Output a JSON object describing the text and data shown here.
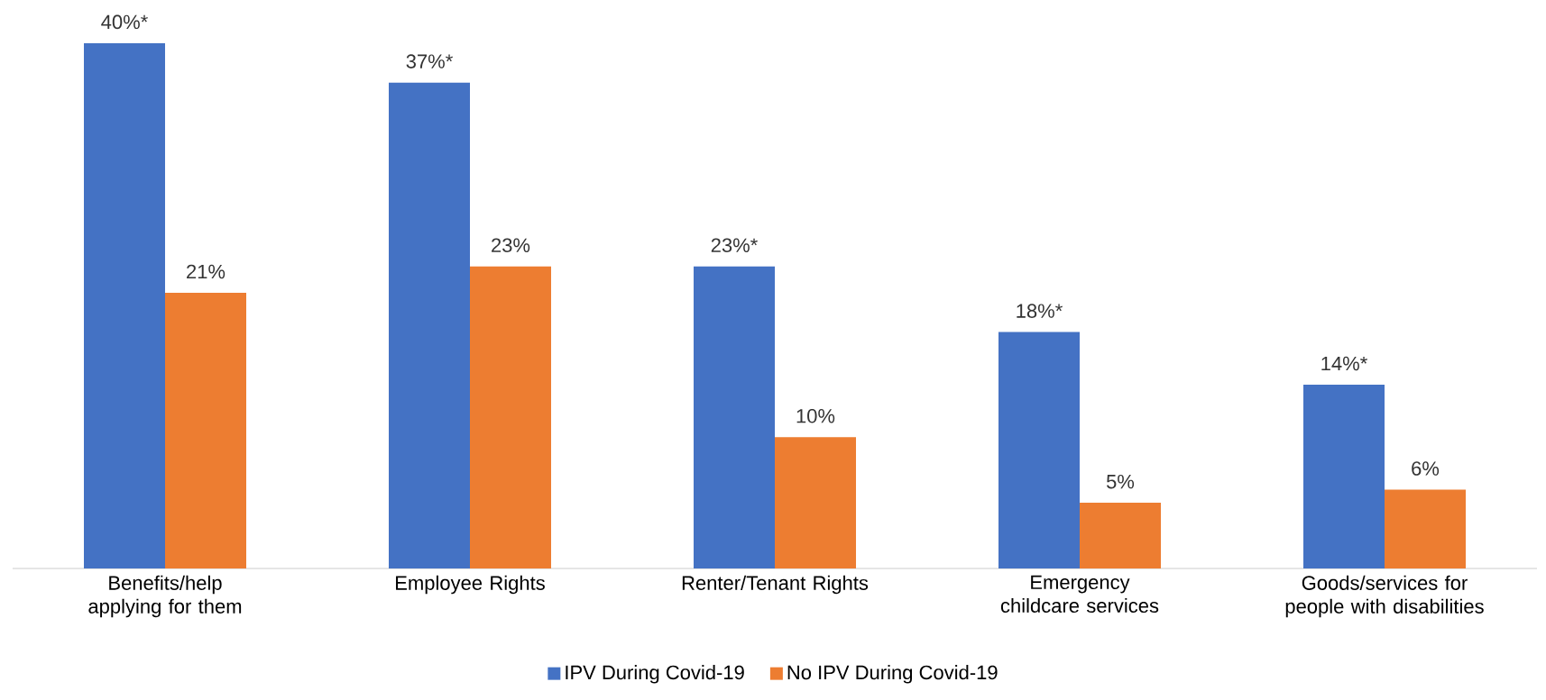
{
  "chart_data": {
    "type": "bar",
    "categories": [
      "Benefits/help applying for them",
      "Employee Rights",
      "Renter/Tenant Rights",
      "Emergency childcare services",
      "Goods/services for people with disabilities"
    ],
    "series": [
      {
        "name": "IPV During Covid-19",
        "color": "#4472c4",
        "values": [
          40,
          37,
          23,
          18,
          14
        ],
        "value_labels": [
          "40%*",
          "37%*",
          "23%*",
          "18%*",
          "14%*"
        ]
      },
      {
        "name": "No IPV During Covid-19",
        "color": "#ed7d31",
        "values": [
          21,
          23,
          10,
          5,
          6
        ],
        "value_labels": [
          "21%",
          "23%",
          "10%",
          "5%",
          "6%"
        ]
      }
    ],
    "legend": "bottom"
  }
}
